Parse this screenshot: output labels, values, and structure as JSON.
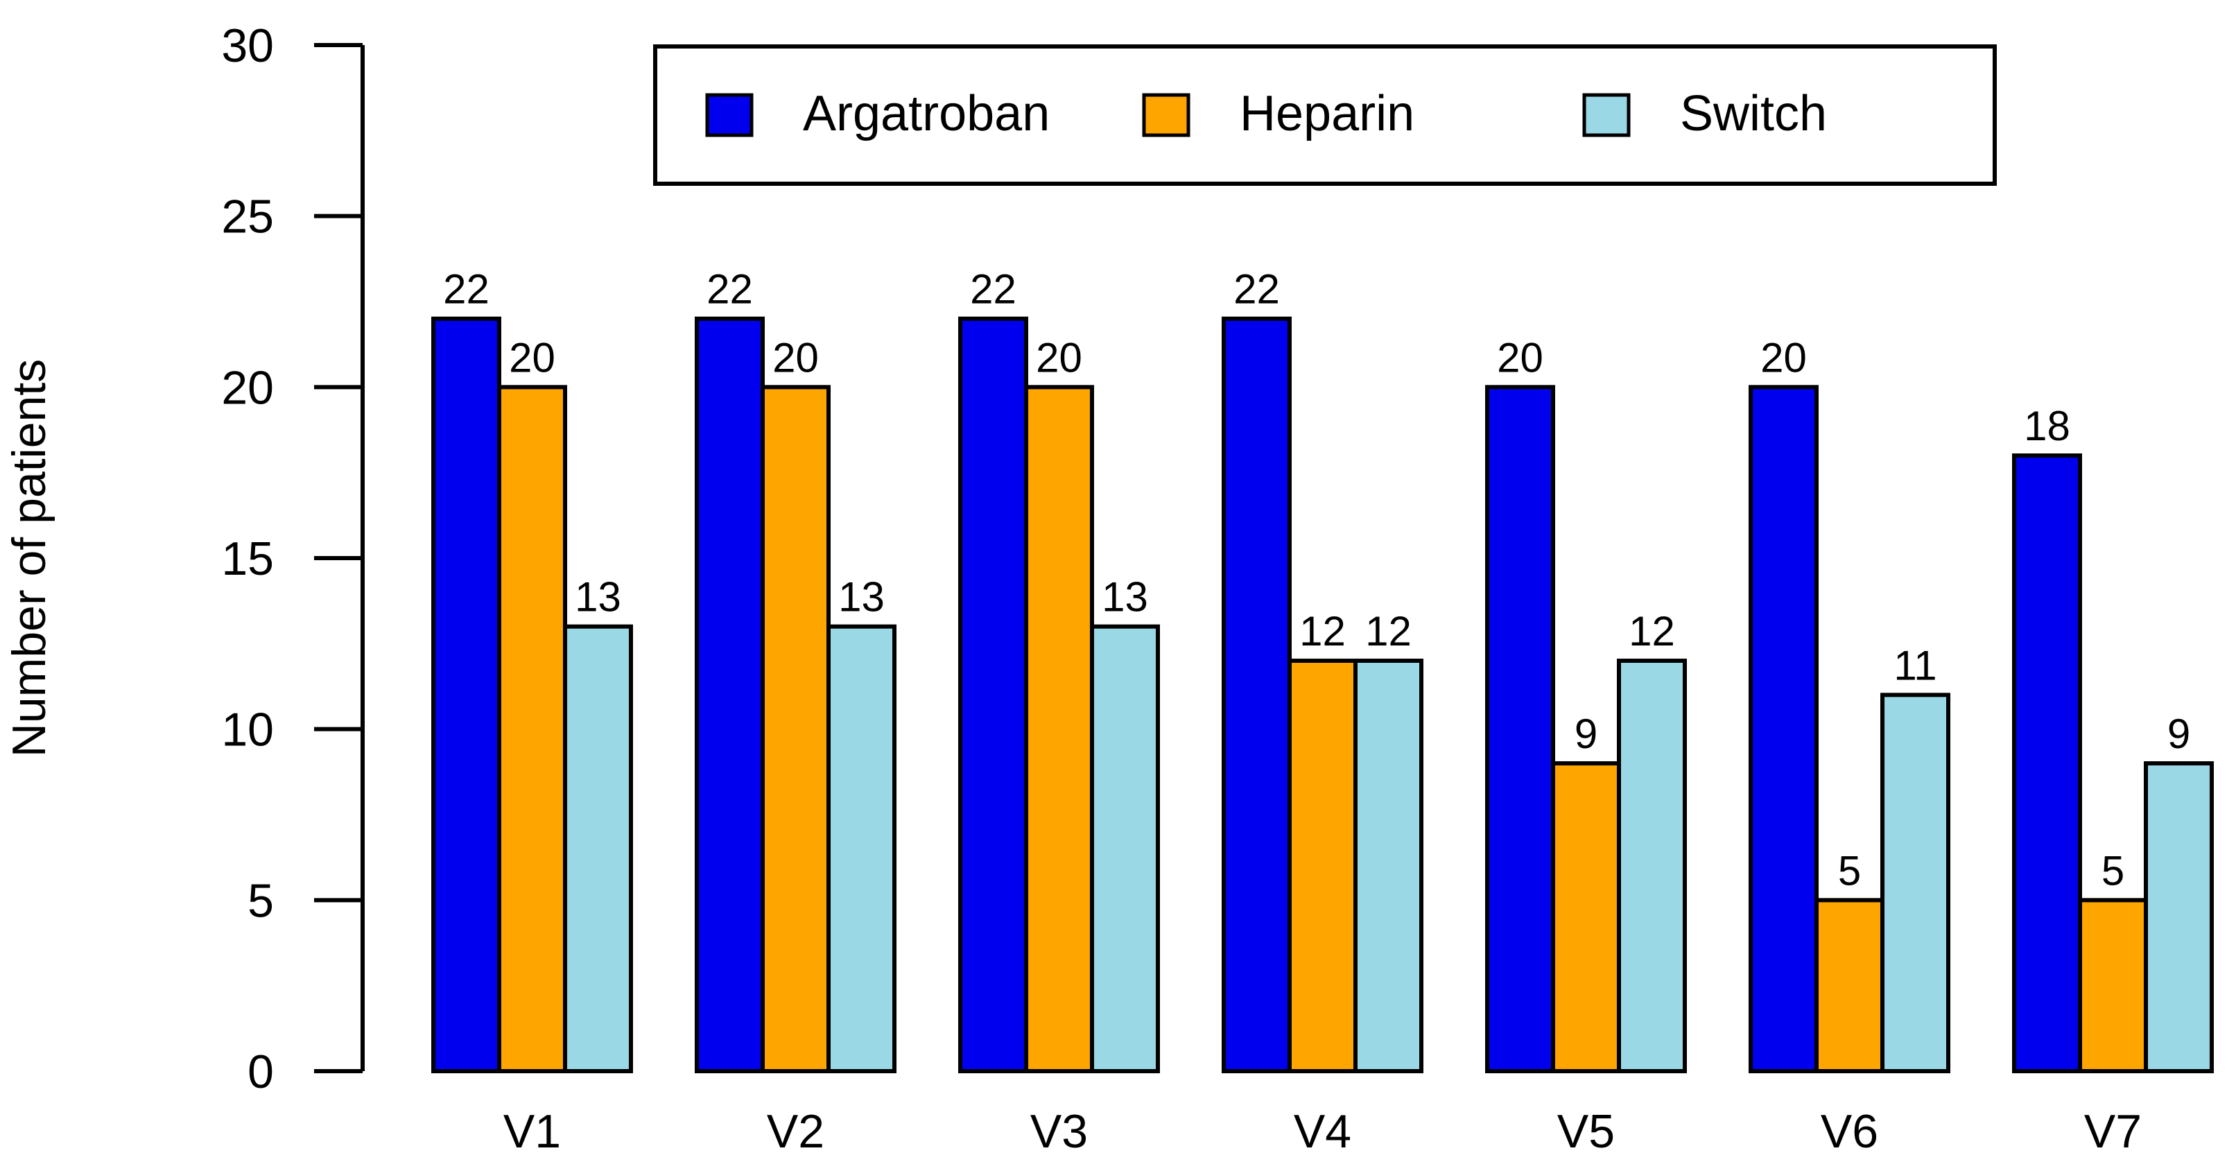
{
  "chart_data": {
    "type": "bar",
    "title": "",
    "xlabel": "",
    "ylabel": "Number of patients",
    "ylim": [
      0,
      30
    ],
    "yticks": [
      "0",
      "5",
      "10",
      "15",
      "20",
      "25",
      "30"
    ],
    "categories": [
      "V1",
      "V2",
      "V3",
      "V4",
      "V5",
      "V6",
      "V7"
    ],
    "series": [
      {
        "name": "Argatroban",
        "color": "#0000EE",
        "values": [
          22,
          22,
          22,
          22,
          20,
          20,
          18
        ],
        "labels": [
          "22",
          "22",
          "22",
          "22",
          "20",
          "20",
          "18"
        ]
      },
      {
        "name": "Heparin",
        "color": "#FFA500",
        "values": [
          20,
          20,
          20,
          12,
          9,
          5,
          5
        ],
        "labels": [
          "20",
          "20",
          "20",
          "12",
          "9",
          "5",
          "5"
        ]
      },
      {
        "name": "Switch",
        "color": "#9AD8E6",
        "values": [
          13,
          13,
          13,
          12,
          12,
          11,
          9
        ],
        "labels": [
          "13",
          "13",
          "13",
          "12",
          "12",
          "11",
          "9"
        ]
      }
    ],
    "legend": {
      "position": "top",
      "orientation": "horizontal"
    },
    "grid": false
  }
}
